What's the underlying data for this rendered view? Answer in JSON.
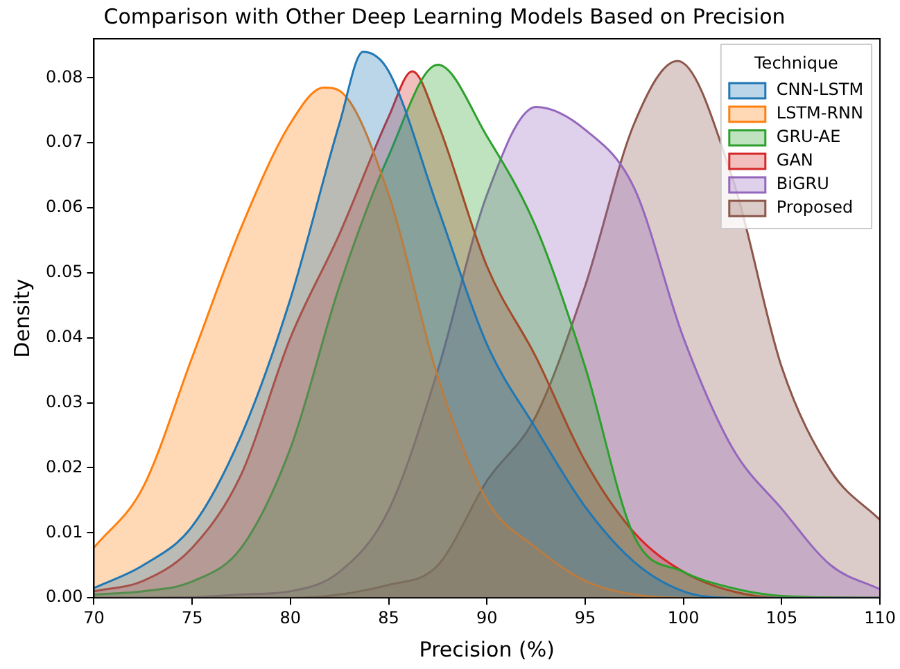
{
  "chart_data": {
    "type": "area",
    "title": "Comparison with Other Deep Learning Models Based on Precision",
    "xlabel": "Precision (%)",
    "ylabel": "Density",
    "legend_title": "Technique",
    "legend": "top right",
    "grid": false,
    "marker": "none",
    "line_style": "solid",
    "xlim": [
      70,
      110
    ],
    "xticks": [
      70,
      75,
      80,
      85,
      90,
      95,
      100,
      105,
      110
    ],
    "ylim": [
      0,
      0.086
    ],
    "yticks": [
      {
        "value": 0,
        "label": "0.00"
      },
      {
        "value": 0.01,
        "label": "0.01"
      },
      {
        "value": 0.02,
        "label": "0.02"
      },
      {
        "value": 0.03,
        "label": "0.03"
      },
      {
        "value": 0.04,
        "label": "0.04"
      },
      {
        "value": 0.05,
        "label": "0.05"
      },
      {
        "value": 0.06,
        "label": "0.06"
      },
      {
        "value": 0.07,
        "label": "0.07"
      },
      {
        "value": 0.08,
        "label": "0.08"
      }
    ],
    "series": [
      {
        "name": "CNN-LSTM",
        "color": "#1f77b4",
        "x": [
          70,
          72.5,
          75,
          77.5,
          80,
          82.5,
          83.7,
          85,
          87.5,
          90,
          92.5,
          95,
          97.5,
          100,
          102.5,
          110
        ],
        "values": [
          0.0015,
          0.005,
          0.011,
          0.025,
          0.046,
          0.073,
          0.084,
          0.081,
          0.06,
          0.039,
          0.026,
          0.014,
          0.0055,
          0.001,
          0,
          0
        ]
      },
      {
        "name": "LSTM-RNN",
        "color": "#ff7f0e",
        "x": [
          70,
          72.5,
          75,
          77.5,
          80,
          81.7,
          82.5,
          85,
          87.5,
          90,
          92.5,
          95,
          97.5,
          100,
          110
        ],
        "values": [
          0.0077,
          0.017,
          0.037,
          0.057,
          0.073,
          0.0785,
          0.078,
          0.062,
          0.034,
          0.015,
          0.0077,
          0.0026,
          0.0005,
          0,
          0
        ]
      },
      {
        "name": "GRU-AE",
        "color": "#2ca02c",
        "x": [
          70,
          72.5,
          75,
          77.5,
          80,
          82.5,
          85,
          87.5,
          90,
          92.5,
          95,
          97.5,
          100,
          102.5,
          105,
          110
        ],
        "values": [
          0.0005,
          0.001,
          0.0025,
          0.0077,
          0.023,
          0.048,
          0.068,
          0.082,
          0.071,
          0.057,
          0.0355,
          0.0094,
          0.004,
          0.0015,
          0.0003,
          0
        ]
      },
      {
        "name": "GAN",
        "color": "#d62728",
        "x": [
          70,
          72.5,
          75,
          77.5,
          80,
          82.5,
          85,
          86.2,
          87.5,
          90,
          92.5,
          95,
          97.5,
          100,
          102.5,
          105,
          110
        ],
        "values": [
          0.001,
          0.0026,
          0.0077,
          0.019,
          0.04,
          0.056,
          0.074,
          0.081,
          0.073,
          0.051,
          0.037,
          0.021,
          0.01,
          0.004,
          0.001,
          0,
          0
        ]
      },
      {
        "name": "BiGRU",
        "color": "#9467bd",
        "x": [
          70,
          75,
          77.5,
          80,
          82.5,
          85,
          87.5,
          90,
          92.5,
          95,
          97.5,
          100,
          102.5,
          105,
          107.5,
          110
        ],
        "values": [
          0,
          0.0001,
          0.0005,
          0.001,
          0.004,
          0.0135,
          0.035,
          0.062,
          0.0755,
          0.072,
          0.063,
          0.04,
          0.023,
          0.0137,
          0.005,
          0.0013
        ]
      },
      {
        "name": "Proposed",
        "color": "#8c564b",
        "x": [
          70,
          80,
          85,
          87.5,
          90,
          92.5,
          95,
          97.5,
          99.7,
          102.5,
          105,
          107.5,
          110
        ],
        "values": [
          0,
          0,
          0.002,
          0.005,
          0.018,
          0.028,
          0.048,
          0.073,
          0.0826,
          0.0645,
          0.0355,
          0.0195,
          0.012
        ]
      }
    ]
  }
}
